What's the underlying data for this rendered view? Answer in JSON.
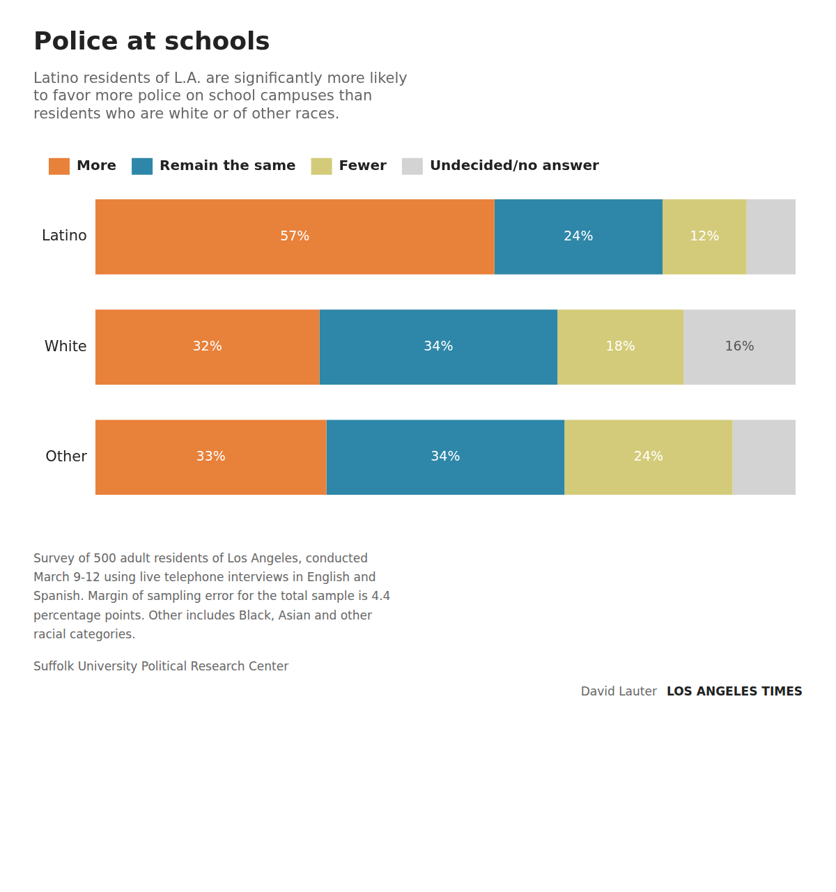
{
  "chart_data": {
    "type": "bar",
    "orientation": "horizontal",
    "stacked": true,
    "data_labels": true,
    "grid": false,
    "legend": "top",
    "tick_labels": "y",
    "title": "Police at schools",
    "subtitle": "Latino residents of L.A. are significantly more likely\nto favor more police on school campuses than\nresidents who are white or of other races.",
    "categories": [
      "Latino",
      "White",
      "Other"
    ],
    "xlim": [
      0,
      100
    ],
    "series": [
      {
        "name": "More",
        "color": "#E8813A",
        "values": [
          57,
          32,
          33
        ],
        "value_labels": [
          "57%",
          "32%",
          "33%"
        ]
      },
      {
        "name": "Remain the same",
        "color": "#2E87A8",
        "values": [
          24,
          34,
          34
        ],
        "value_labels": [
          "24%",
          "34%",
          "34%"
        ]
      },
      {
        "name": "Fewer",
        "color": "#D4CB7A",
        "values": [
          12,
          18,
          24
        ],
        "value_labels": [
          "12%",
          "18%",
          "24%"
        ]
      },
      {
        "name": "Undecided/no answer",
        "color": "#D3D3D3",
        "values": [
          7,
          16,
          9
        ],
        "value_labels": [
          null,
          "16%",
          null
        ]
      }
    ],
    "footnote": [
      "Survey of 500 adult residents of Los Angeles, conducted",
      "March 9-12 using live telephone interviews in English and",
      "Spanish. Margin of sampling error for the total sample is 4.4",
      "percentage points. Other includes Black, Asian and other",
      "racial categories."
    ],
    "source": "Suffolk University Political Research Center",
    "credit": [
      "David Lauter",
      "LOS ANGELES TIMES"
    ]
  }
}
